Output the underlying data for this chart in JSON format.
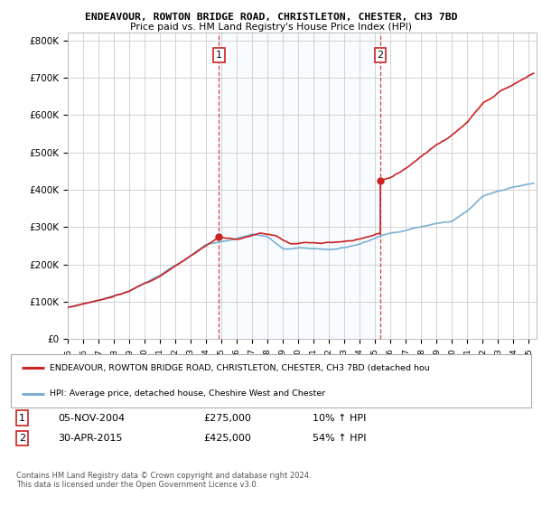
{
  "title1": "ENDEAVOUR, ROWTON BRIDGE ROAD, CHRISTLETON, CHESTER, CH3 7BD",
  "title2": "Price paid vs. HM Land Registry's House Price Index (HPI)",
  "ylabel_ticks": [
    "£0",
    "£100K",
    "£200K",
    "£300K",
    "£400K",
    "£500K",
    "£600K",
    "£700K",
    "£800K"
  ],
  "ytick_values": [
    0,
    100000,
    200000,
    300000,
    400000,
    500000,
    600000,
    700000,
    800000
  ],
  "ylim": [
    0,
    820000
  ],
  "xlim_start": 1995.0,
  "xlim_end": 2025.5,
  "hpi_color": "#7bafd4",
  "price_color": "#cc2222",
  "purchase1_x": 2004.84,
  "purchase1_y": 275000,
  "purchase2_x": 2015.33,
  "purchase2_y": 425000,
  "legend_label1": "ENDEAVOUR, ROWTON BRIDGE ROAD, CHRISTLETON, CHESTER, CH3 7BD (detached hou",
  "legend_label2": "HPI: Average price, detached house, Cheshire West and Chester",
  "table_row1_num": "1",
  "table_row1_date": "05-NOV-2004",
  "table_row1_price": "£275,000",
  "table_row1_hpi": "10% ↑ HPI",
  "table_row2_num": "2",
  "table_row2_date": "30-APR-2015",
  "table_row2_price": "£425,000",
  "table_row2_hpi": "54% ↑ HPI",
  "footer": "Contains HM Land Registry data © Crown copyright and database right 2024.\nThis data is licensed under the Open Government Licence v3.0.",
  "background_color": "#ffffff",
  "grid_color": "#cccccc",
  "shade_color": "#ddeeff"
}
